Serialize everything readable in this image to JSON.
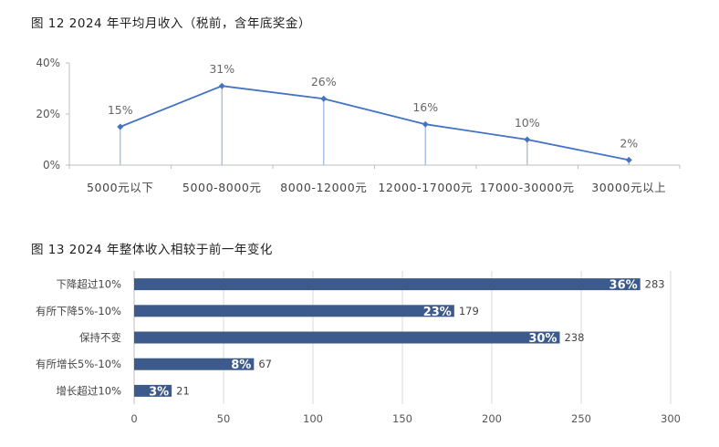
{
  "chart_data": [
    {
      "type": "line",
      "title": "图 12 2024 年平均月收入（税前，含年底奖金）",
      "categories": [
        "5000元以下",
        "5000-8000元",
        "8000-12000元",
        "12000-17000元",
        "17000-30000元",
        "30000元以上"
      ],
      "values": [
        15,
        31,
        26,
        16,
        10,
        2
      ],
      "value_labels": [
        "15%",
        "31%",
        "26%",
        "16%",
        "10%",
        "2%"
      ],
      "y_ticks": [
        "0%",
        "20%",
        "40%"
      ],
      "ylim": [
        0,
        40
      ],
      "line_color": "#4472C4",
      "drop_lines": true,
      "grid": false,
      "legend": "none"
    },
    {
      "type": "bar",
      "orientation": "horizontal",
      "title": "图 13 2024 年整体收入相较于前一年变化",
      "categories": [
        "下降超过10%",
        "有所下降5%-10%",
        "保持不变",
        "有所增长5%-10%",
        "增长超过10%"
      ],
      "values": [
        283,
        179,
        238,
        67,
        21
      ],
      "percent_labels": [
        "36%",
        "23%",
        "30%",
        "8%",
        "3%"
      ],
      "x_ticks": [
        "0",
        "50",
        "100",
        "150",
        "200",
        "250",
        "300"
      ],
      "xlim": [
        0,
        300
      ],
      "bar_color": "#3C5B8C",
      "grid": "vertical",
      "legend": "none"
    }
  ]
}
